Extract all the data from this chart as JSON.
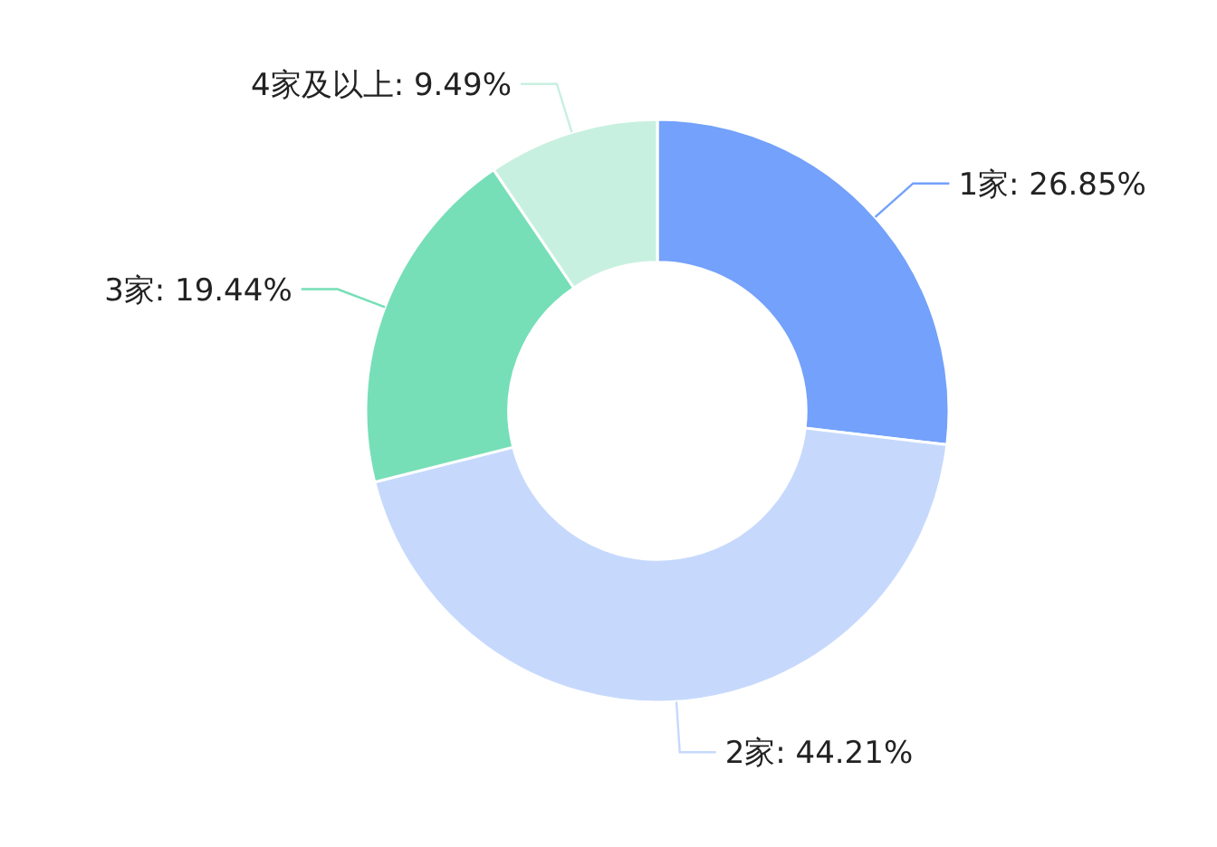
{
  "chart_data": {
    "type": "donut",
    "categories": [
      "1家",
      "2家",
      "3家",
      "4家及以上"
    ],
    "values": [
      26.85,
      44.21,
      19.44,
      9.49
    ],
    "value_labels": [
      "26.85%",
      "44.21%",
      "19.44%",
      "9.49%"
    ],
    "colors": [
      "#73a1fb",
      "#c6d9fd",
      "#76dfb7",
      "#c8f0e0"
    ]
  }
}
